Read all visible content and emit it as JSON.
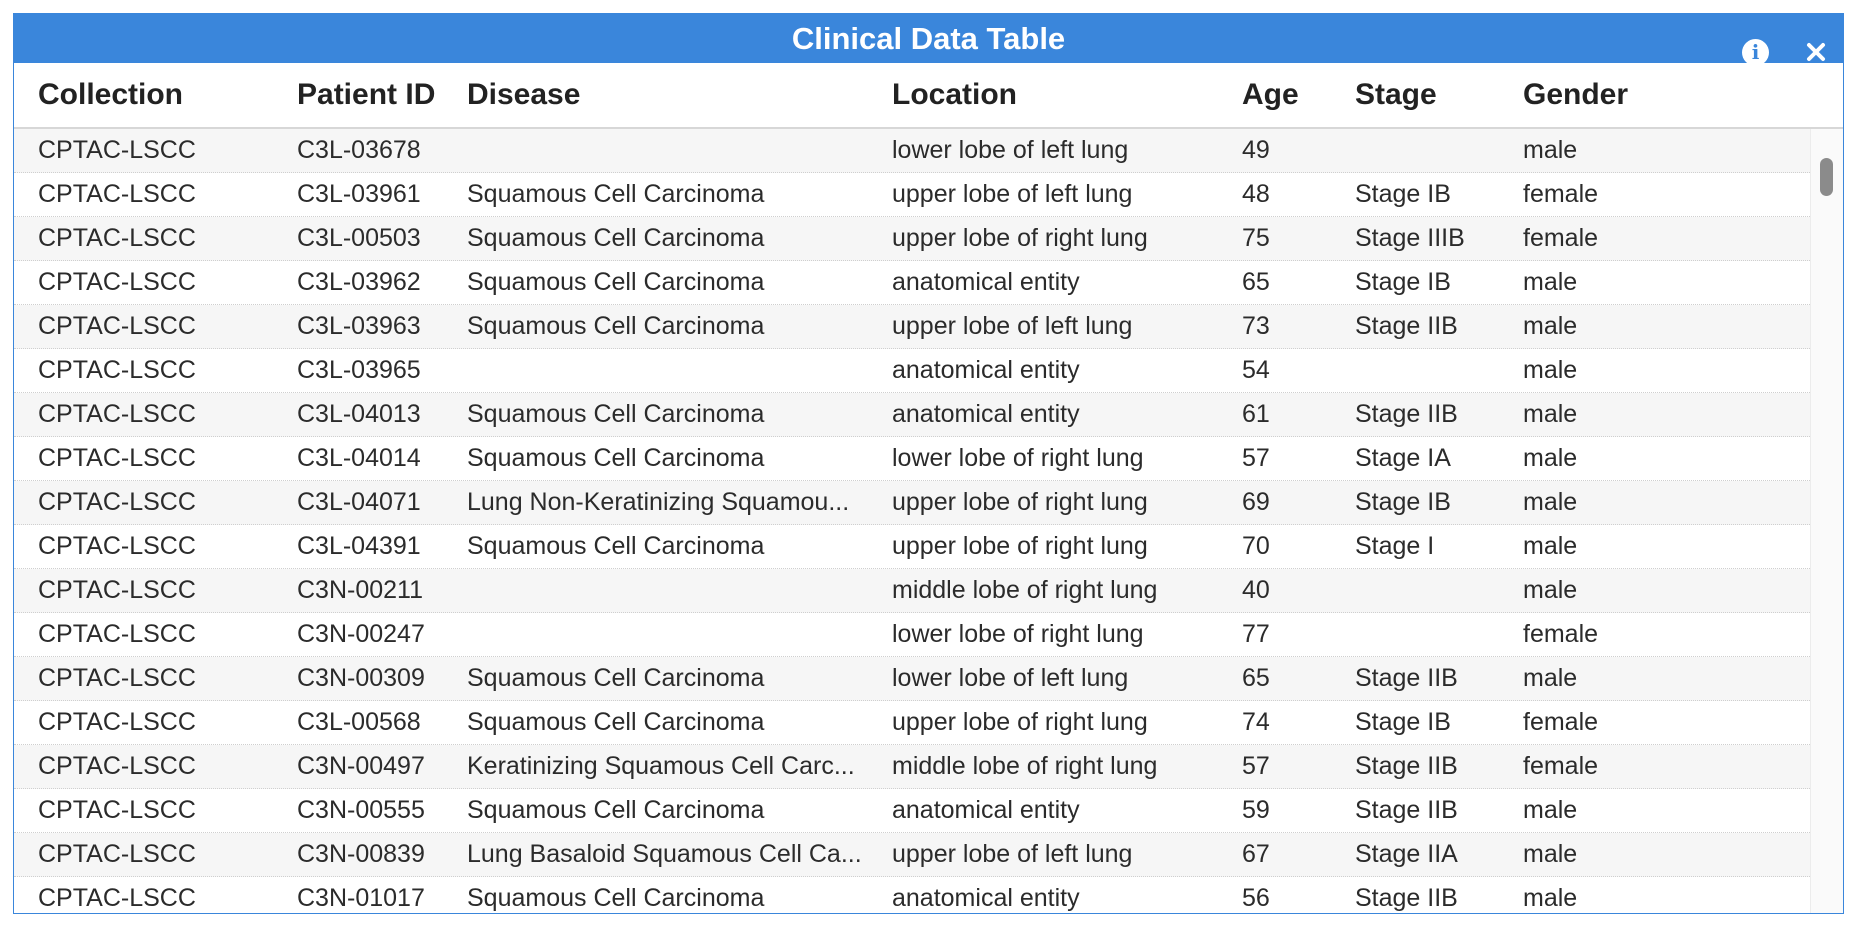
{
  "window": {
    "title": "Clinical Data Table",
    "info_icon": "info-icon",
    "close_icon": "close-icon",
    "accent_color": "#3a86db"
  },
  "table": {
    "columns": [
      "Collection",
      "Patient ID",
      "Disease",
      "Location",
      "Age",
      "Stage",
      "Gender"
    ],
    "rows": [
      [
        "CPTAC-LSCC",
        "C3L-03678",
        "",
        "lower lobe of left lung",
        "49",
        "",
        "male"
      ],
      [
        "CPTAC-LSCC",
        "C3L-03961",
        "Squamous Cell Carcinoma",
        "upper lobe of left lung",
        "48",
        "Stage IB",
        "female"
      ],
      [
        "CPTAC-LSCC",
        "C3L-00503",
        "Squamous Cell Carcinoma",
        "upper lobe of right lung",
        "75",
        "Stage IIIB",
        "female"
      ],
      [
        "CPTAC-LSCC",
        "C3L-03962",
        "Squamous Cell Carcinoma",
        "anatomical entity",
        "65",
        "Stage IB",
        "male"
      ],
      [
        "CPTAC-LSCC",
        "C3L-03963",
        "Squamous Cell Carcinoma",
        "upper lobe of left lung",
        "73",
        "Stage IIB",
        "male"
      ],
      [
        "CPTAC-LSCC",
        "C3L-03965",
        "",
        "anatomical entity",
        "54",
        "",
        "male"
      ],
      [
        "CPTAC-LSCC",
        "C3L-04013",
        "Squamous Cell Carcinoma",
        "anatomical entity",
        "61",
        "Stage IIB",
        "male"
      ],
      [
        "CPTAC-LSCC",
        "C3L-04014",
        "Squamous Cell Carcinoma",
        "lower lobe of right lung",
        "57",
        "Stage IA",
        "male"
      ],
      [
        "CPTAC-LSCC",
        "C3L-04071",
        "Lung Non-Keratinizing Squamou...",
        "upper lobe of right lung",
        "69",
        "Stage IB",
        "male"
      ],
      [
        "CPTAC-LSCC",
        "C3L-04391",
        "Squamous Cell Carcinoma",
        "upper lobe of right lung",
        "70",
        "Stage I",
        "male"
      ],
      [
        "CPTAC-LSCC",
        "C3N-00211",
        "",
        "middle lobe of right lung",
        "40",
        "",
        "male"
      ],
      [
        "CPTAC-LSCC",
        "C3N-00247",
        "",
        "lower lobe of right lung",
        "77",
        "",
        "female"
      ],
      [
        "CPTAC-LSCC",
        "C3N-00309",
        "Squamous Cell Carcinoma",
        "lower lobe of left lung",
        "65",
        "Stage IIB",
        "male"
      ],
      [
        "CPTAC-LSCC",
        "C3L-00568",
        "Squamous Cell Carcinoma",
        "upper lobe of right lung",
        "74",
        "Stage IB",
        "female"
      ],
      [
        "CPTAC-LSCC",
        "C3N-00497",
        "Keratinizing Squamous Cell Carc...",
        "middle lobe of right lung",
        "57",
        "Stage IIB",
        "female"
      ],
      [
        "CPTAC-LSCC",
        "C3N-00555",
        "Squamous Cell Carcinoma",
        "anatomical entity",
        "59",
        "Stage IIB",
        "male"
      ],
      [
        "CPTAC-LSCC",
        "C3N-00839",
        "Lung Basaloid Squamous Cell Ca...",
        "upper lobe of left lung",
        "67",
        "Stage IIA",
        "male"
      ],
      [
        "CPTAC-LSCC",
        "C3N-01017",
        "Squamous Cell Carcinoma",
        "anatomical entity",
        "56",
        "Stage IIB",
        "male"
      ]
    ]
  }
}
